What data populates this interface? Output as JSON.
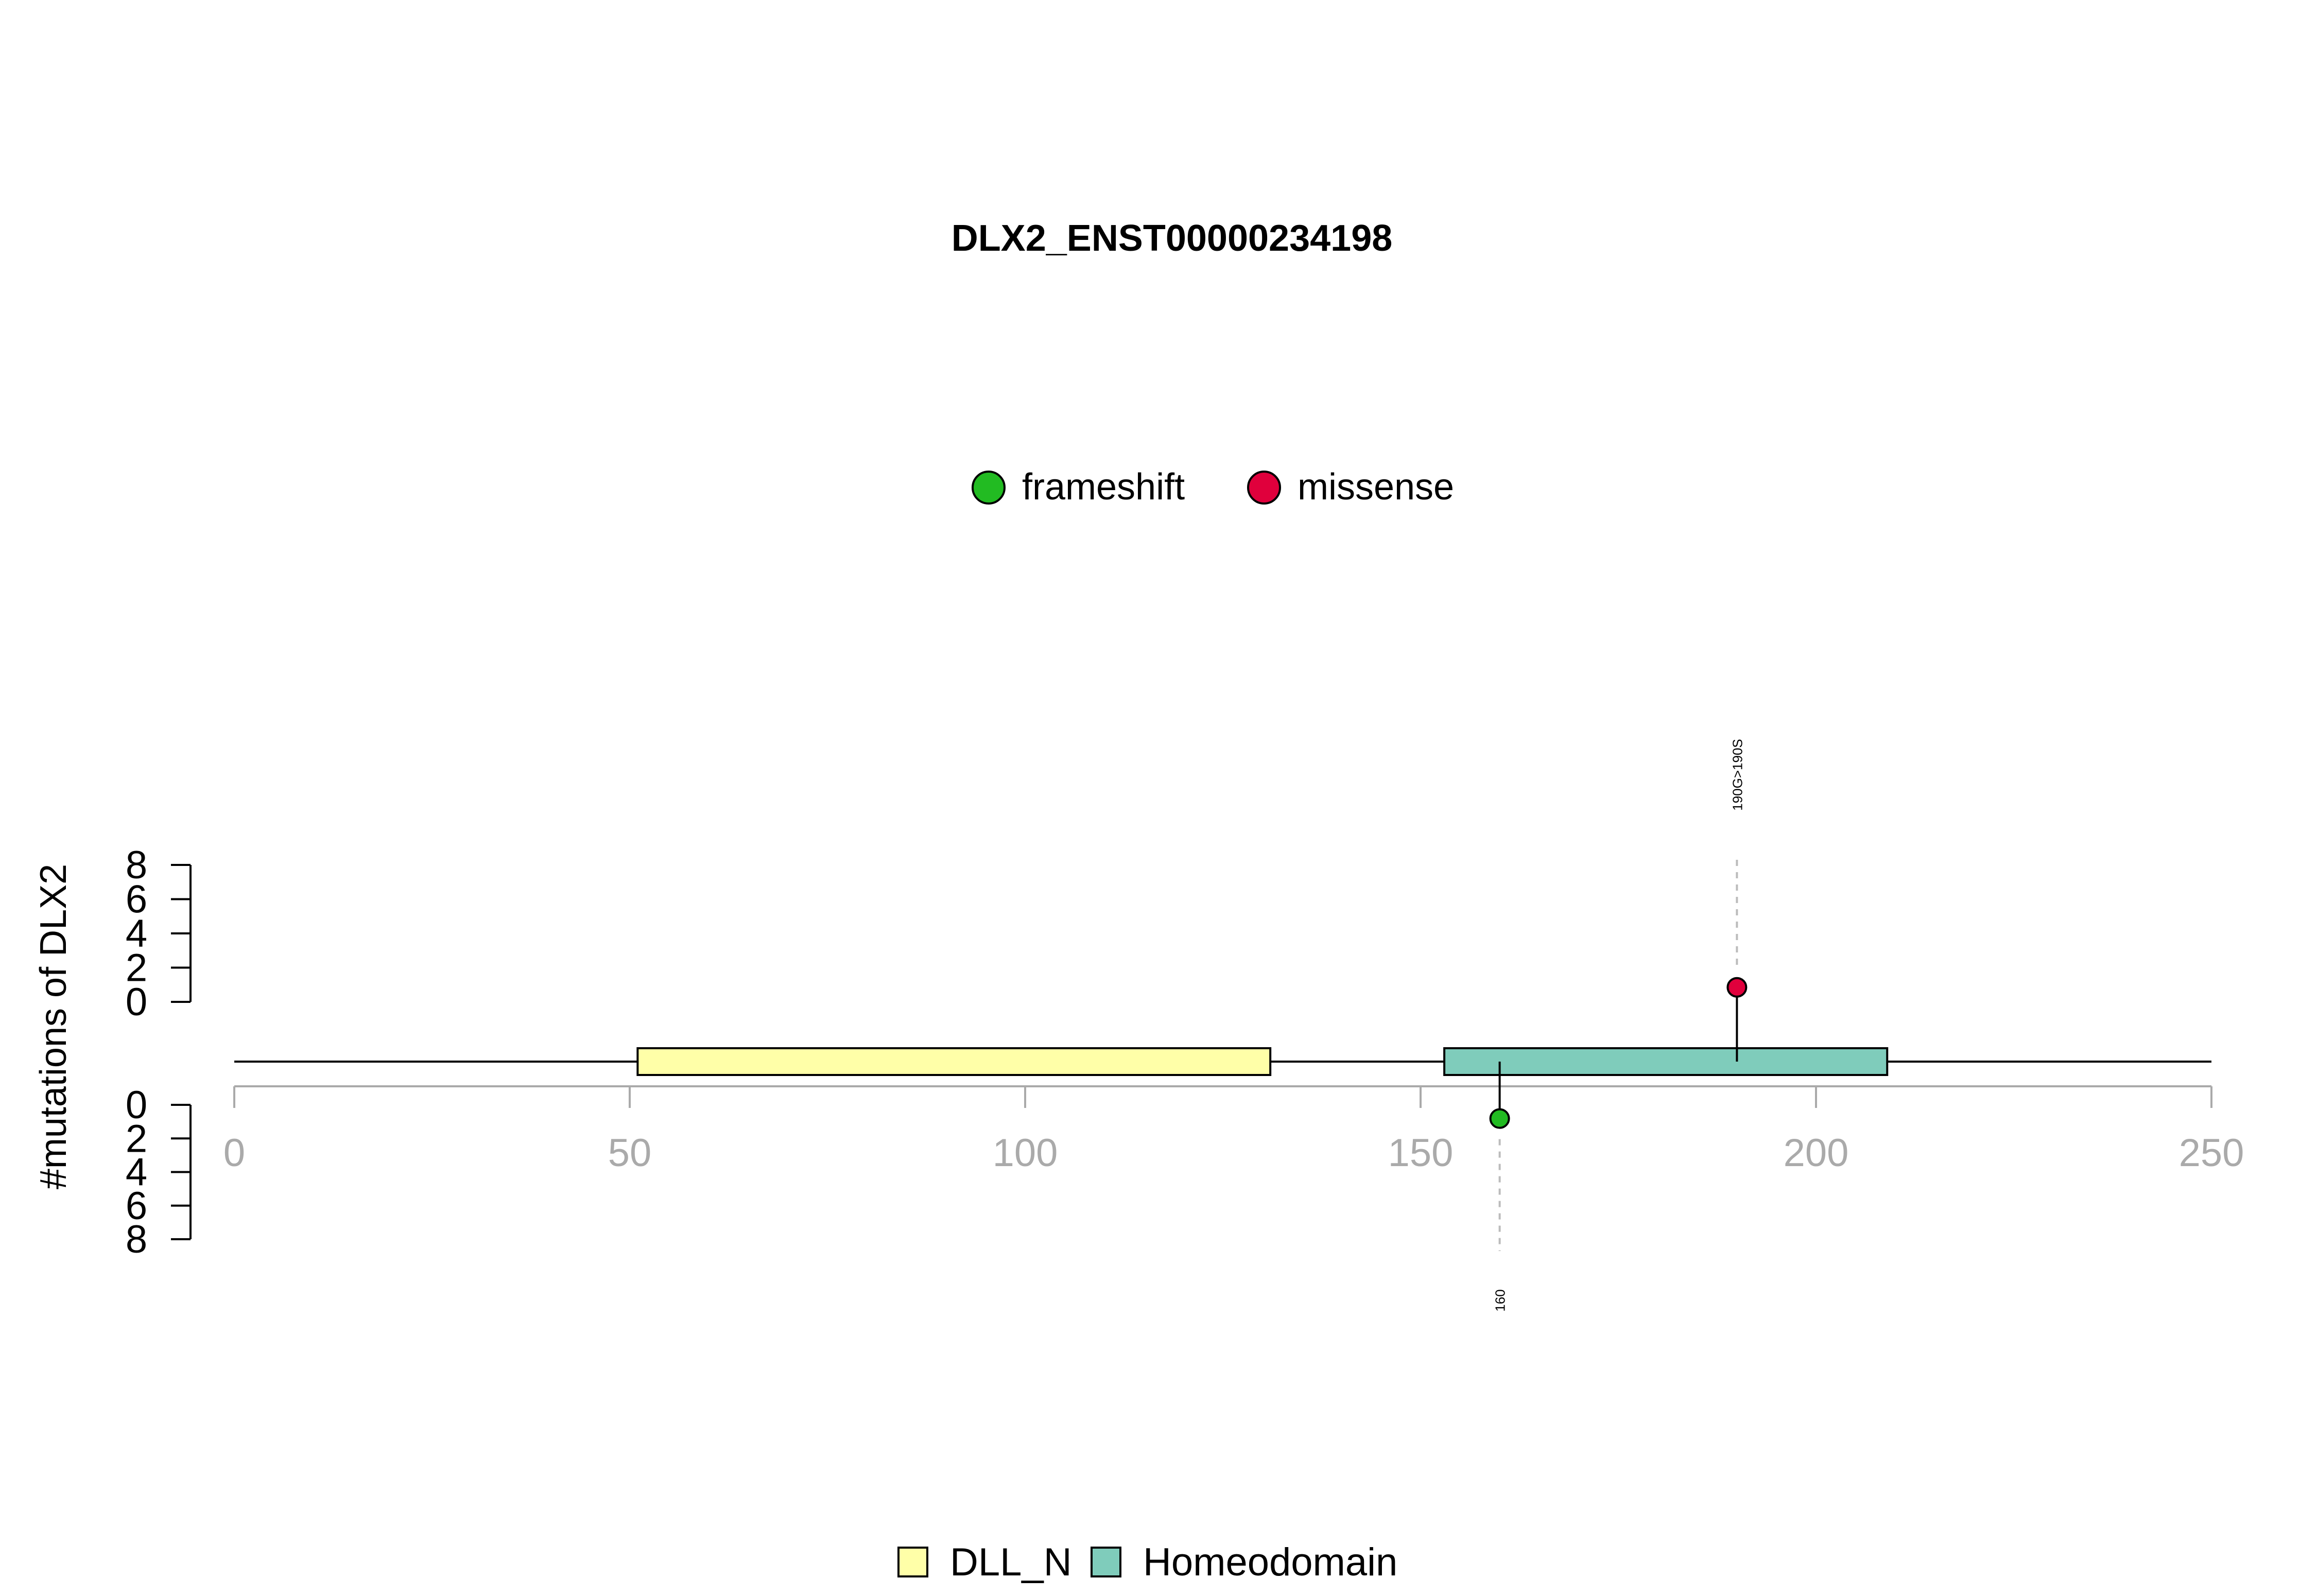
{
  "chart_data": {
    "type": "lollipop",
    "title": "DLX2_ENST00000234198",
    "ylabel": "#mutations of DLX2",
    "xlim": [
      0,
      250
    ],
    "x_ticks": [
      0,
      50,
      100,
      150,
      200,
      250
    ],
    "ylim": [
      0,
      8
    ],
    "y_ticks": [
      0,
      2,
      4,
      6,
      8
    ],
    "mutation_legend": [
      {
        "name": "frameshift",
        "color": "#22bb22"
      },
      {
        "name": "missense",
        "color": "#e0003c"
      }
    ],
    "domain_legend": [
      {
        "name": "DLL_N",
        "color": "#ffffa8"
      },
      {
        "name": "Homeodomain",
        "color": "#7fccbb"
      }
    ],
    "domains": [
      {
        "name": "DLL_N",
        "start": 51,
        "end": 131,
        "color": "#ffffa8"
      },
      {
        "name": "Homeodomain",
        "start": 153,
        "end": 209,
        "color": "#7fccbb"
      }
    ],
    "mutations": [
      {
        "position": 190,
        "count": 1,
        "type": "missense",
        "label": "190G>190S",
        "side": "top",
        "color": "#e0003c"
      },
      {
        "position": 160,
        "count": 1,
        "type": "frameshift",
        "label": "160",
        "side": "bottom",
        "color": "#22bb22"
      }
    ],
    "axis_color": "#aaaaaa",
    "tick_label_color": "#aaaaaa"
  }
}
